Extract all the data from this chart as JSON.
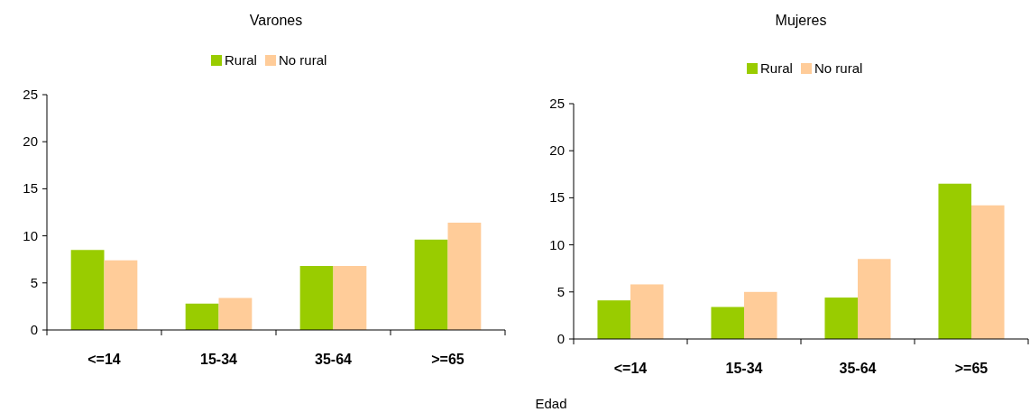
{
  "chart_data": [
    {
      "type": "bar",
      "title": "Varones",
      "categories": [
        "<=14",
        "15-34",
        "35-64",
        ">=65"
      ],
      "series": [
        {
          "name": "Rural",
          "color": "#99cc00",
          "values": [
            8.5,
            2.8,
            6.8,
            9.6
          ]
        },
        {
          "name": "No rural",
          "color": "#ffcc99",
          "values": [
            7.4,
            3.4,
            6.8,
            11.4
          ]
        }
      ],
      "ylim": [
        0,
        25
      ],
      "yticks": [
        0,
        5,
        10,
        15,
        20,
        25
      ],
      "legend": "top"
    },
    {
      "type": "bar",
      "title": "Mujeres",
      "xlabel": "Edad",
      "categories": [
        "<=14",
        "15-34",
        "35-64",
        ">=65"
      ],
      "series": [
        {
          "name": "Rural",
          "color": "#99cc00",
          "values": [
            4.1,
            3.4,
            4.4,
            16.5
          ]
        },
        {
          "name": "No rural",
          "color": "#ffcc99",
          "values": [
            5.8,
            5.0,
            8.5,
            14.2
          ]
        }
      ],
      "ylim": [
        0,
        25
      ],
      "yticks": [
        0,
        5,
        10,
        15,
        20,
        25
      ],
      "legend": "top"
    }
  ]
}
